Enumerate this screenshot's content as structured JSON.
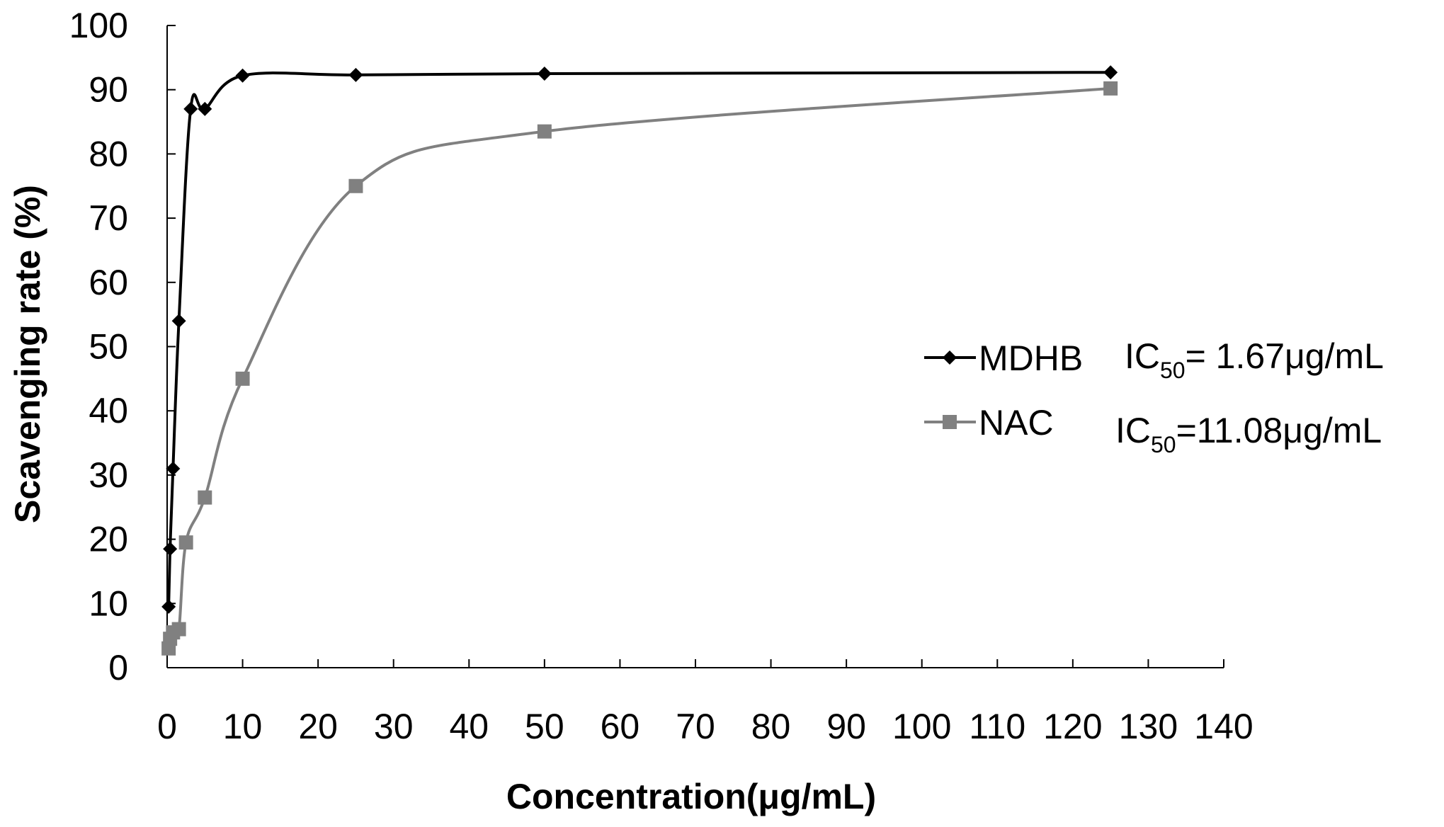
{
  "chart_data": {
    "type": "line",
    "title": "",
    "xlabel": "Concentration(μg/mL)",
    "ylabel": "Scavenging rate (%)",
    "xlim": [
      0,
      140
    ],
    "ylim": [
      0,
      100
    ],
    "xticks": [
      0,
      10,
      20,
      30,
      40,
      50,
      60,
      70,
      80,
      90,
      100,
      110,
      120,
      130,
      140
    ],
    "yticks": [
      0,
      10,
      20,
      30,
      40,
      50,
      60,
      70,
      80,
      90,
      100
    ],
    "grid": false,
    "legend": "center-right",
    "series": [
      {
        "name": "MDHB",
        "color": "#000000",
        "marker": "diamond",
        "x": [
          0.2,
          0.39,
          0.78,
          1.56,
          3.12,
          5,
          10,
          25,
          50,
          125
        ],
        "y": [
          9.5,
          18.5,
          31,
          54,
          87,
          87,
          92.2,
          92.3,
          92.5,
          92.7
        ]
      },
      {
        "name": "NAC",
        "color": "#808080",
        "marker": "square",
        "x": [
          0.2,
          0.39,
          0.78,
          1.56,
          2.5,
          5,
          10,
          25,
          50,
          125
        ],
        "y": [
          3,
          4.5,
          5.5,
          6,
          19.5,
          26.5,
          45,
          75,
          83.5,
          90.2
        ]
      }
    ],
    "annotations": [
      {
        "series": "MDHB",
        "prefix": "IC",
        "sub": "50",
        "suffix": "= 1.67μg/mL"
      },
      {
        "series": "NAC",
        "prefix": "IC",
        "sub": "50",
        "suffix": "=11.08μg/mL"
      }
    ]
  }
}
